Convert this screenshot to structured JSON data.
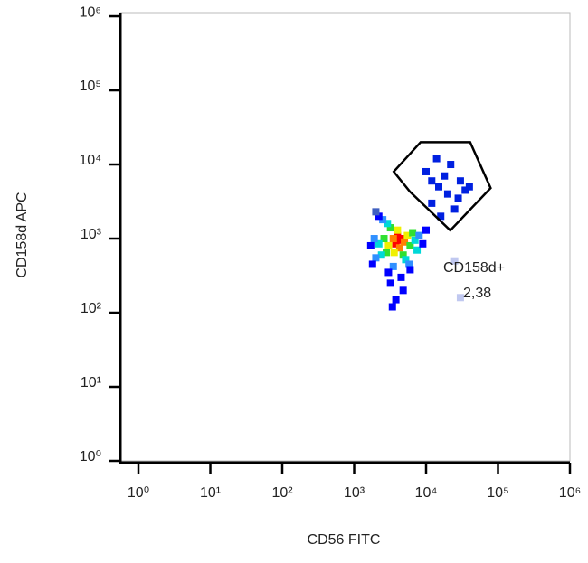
{
  "chart_data": {
    "type": "scatter",
    "x_label": "CD56 FITC",
    "y_label": "CD158d APC",
    "log_x": true,
    "log_y": true,
    "xlim": [
      0.56,
      1000000
    ],
    "ylim": [
      1,
      1120000
    ],
    "xticks": [
      {
        "value": 1,
        "label": "10⁰"
      },
      {
        "value": 10,
        "label": "10¹"
      },
      {
        "value": 100,
        "label": "10²"
      },
      {
        "value": 1000,
        "label": "10³"
      },
      {
        "value": 10000,
        "label": "10⁴"
      },
      {
        "value": 100000,
        "label": "10⁵"
      },
      {
        "value": 1000000,
        "label": "10⁶"
      }
    ],
    "yticks": [
      {
        "value": 1,
        "label": "10⁰"
      },
      {
        "value": 10,
        "label": "10¹"
      },
      {
        "value": 100,
        "label": "10²"
      },
      {
        "value": 1000,
        "label": "10³"
      },
      {
        "value": 10000,
        "label": "10⁴"
      },
      {
        "value": 100000,
        "label": "10⁵"
      },
      {
        "value": 1000000,
        "label": "10⁶"
      }
    ],
    "x": [
      4200,
      3800,
      4500,
      4000,
      3500,
      5000,
      4300,
      3000,
      5500,
      4000,
      3600,
      2600,
      6000,
      3200,
      4800,
      2800,
      6500,
      2200,
      7000,
      2900,
      5200,
      2400,
      7500,
      1900,
      8000,
      2500,
      5800,
      2000,
      3500,
      1700,
      9000,
      10000,
      2200,
      6000,
      3000,
      1800,
      4500,
      3200,
      4800,
      3800,
      3400,
      12000,
      15000,
      20000,
      25000,
      18000,
      30000,
      10000,
      14000,
      22000,
      35000,
      28000,
      16000,
      40000,
      12000,
      2000,
      30000,
      25000
    ],
    "y": [
      950,
      850,
      1000,
      1100,
      1000,
      900,
      750,
      800,
      1100,
      1300,
      650,
      1000,
      800,
      1400,
      600,
      650,
      1200,
      850,
      950,
      1600,
      520,
      600,
      700,
      1000,
      1100,
      1800,
      450,
      550,
      420,
      800,
      850,
      1300,
      2000,
      380,
      350,
      450,
      300,
      250,
      200,
      150,
      120,
      3000,
      5000,
      4000,
      2500,
      7000,
      6000,
      8000,
      12000,
      10000,
      4500,
      3500,
      2000,
      5000,
      6000,
      2300,
      160,
      500
    ],
    "colors": [
      "#ff0000",
      "#ff0000",
      "#ff0000",
      "#ff0000",
      "#ff8000",
      "#ff8000",
      "#ff8000",
      "#f0f000",
      "#f0f000",
      "#f0f000",
      "#f0f000",
      "#30e030",
      "#30e030",
      "#30e030",
      "#30e030",
      "#30e030",
      "#30e030",
      "#00d8d8",
      "#00d8d8",
      "#00d8d8",
      "#00d8d8",
      "#00d8d8",
      "#00d8d8",
      "#3090ff",
      "#3090ff",
      "#3090ff",
      "#3090ff",
      "#3090ff",
      "#3090ff",
      "#0000ff",
      "#0000ff",
      "#0000ff",
      "#0000ff",
      "#0000ff",
      "#0000ff",
      "#0000ff",
      "#0000ff",
      "#0000ff",
      "#0000ff",
      "#0000ff",
      "#0000ff",
      "#0020e0",
      "#0020e0",
      "#0020e0",
      "#0020e0",
      "#0020e0",
      "#0020e0",
      "#0020e0",
      "#0020e0",
      "#0020e0",
      "#0020e0",
      "#0020e0",
      "#0020e0",
      "#0020e0",
      "#0020e0",
      "#4060c0",
      "#c0c8f0",
      "#c0c8f0"
    ],
    "gate": {
      "name": "CD158d+",
      "value": 2.38,
      "value_label": "2,38",
      "x": [
        3550,
        8400,
        41000,
        79000,
        21700,
        5950
      ],
      "y": [
        8000,
        20000,
        20000,
        4800,
        1290,
        4300
      ]
    }
  }
}
